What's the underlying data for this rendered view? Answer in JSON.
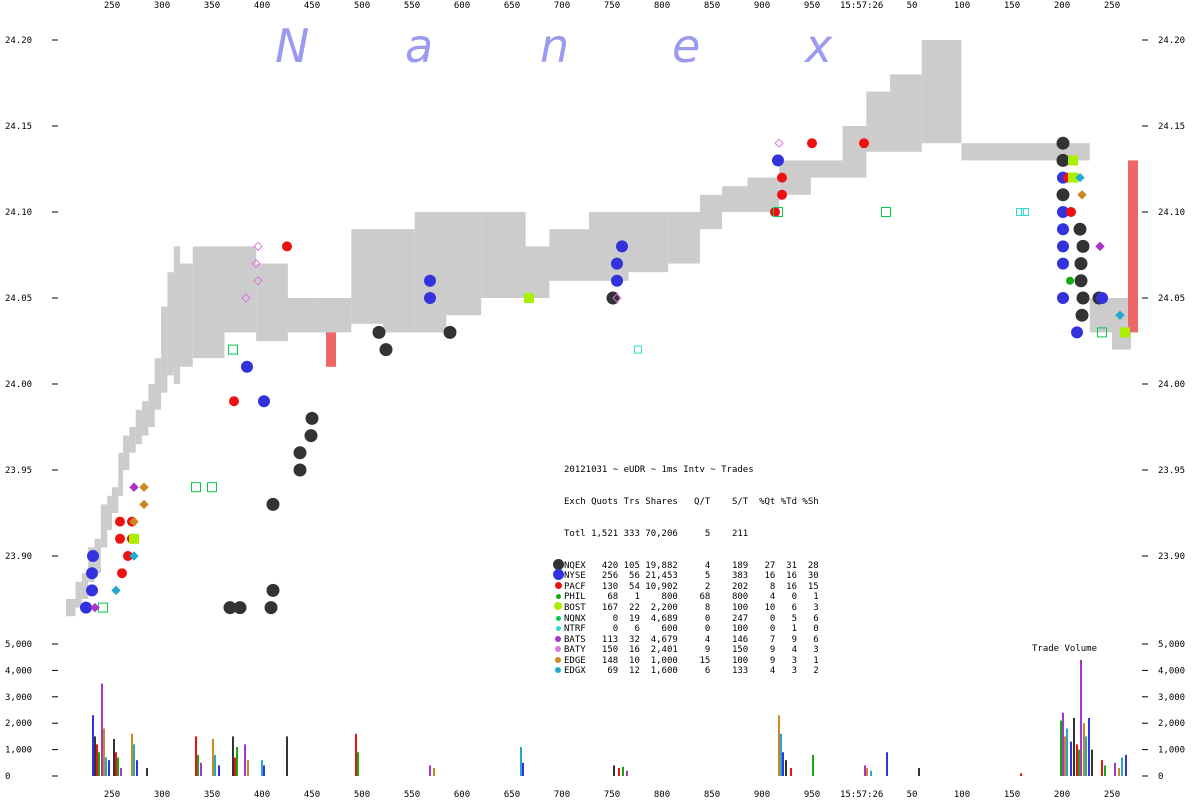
{
  "watermark": "Nanex",
  "top_time_label": "15:57:26",
  "bottom_time_label": "15:57:26",
  "chart_data": [
    {
      "type": "scatter",
      "title": "",
      "x_ticks_top": [
        "250",
        "300",
        "350",
        "400",
        "450",
        "500",
        "550",
        "600",
        "650",
        "700",
        "750",
        "800",
        "850",
        "900",
        "950",
        "50",
        "100",
        "150",
        "200",
        "250"
      ],
      "x_ticks_bottom": [
        "250",
        "300",
        "350",
        "400",
        "450",
        "500",
        "550",
        "600",
        "650",
        "700",
        "750",
        "800",
        "850",
        "900",
        "950",
        "50",
        "100",
        "150",
        "200",
        "250"
      ],
      "y_ticks": [
        "24.20",
        "24.15",
        "24.10",
        "24.05",
        "24.00",
        "23.95",
        "23.90"
      ],
      "ylim": [
        23.86,
        24.2
      ],
      "nbbo_band": [
        [
          0,
          23.865,
          23.875
        ],
        [
          6,
          23.87,
          23.885
        ],
        [
          10,
          23.875,
          23.89
        ],
        [
          14,
          23.885,
          23.905
        ],
        [
          18,
          23.89,
          23.91
        ],
        [
          22,
          23.905,
          23.93
        ],
        [
          26,
          23.915,
          23.935
        ],
        [
          29,
          23.925,
          23.94
        ],
        [
          33,
          23.935,
          23.96
        ],
        [
          36,
          23.95,
          23.97
        ],
        [
          40,
          23.96,
          23.975
        ],
        [
          44,
          23.965,
          23.985
        ],
        [
          48,
          23.97,
          23.99
        ],
        [
          52,
          23.975,
          24.0
        ],
        [
          56,
          23.985,
          24.015
        ],
        [
          60,
          23.995,
          24.045
        ],
        [
          64,
          24.005,
          24.065
        ],
        [
          68,
          24.0,
          24.08
        ],
        [
          72,
          24.01,
          24.07
        ],
        [
          80,
          24.015,
          24.08
        ],
        [
          100,
          24.03,
          24.08
        ],
        [
          120,
          24.025,
          24.07
        ],
        [
          140,
          24.03,
          24.05
        ],
        [
          160,
          24.03,
          24.05
        ],
        [
          180,
          24.035,
          24.09
        ],
        [
          200,
          24.03,
          24.09
        ],
        [
          220,
          24.03,
          24.1
        ],
        [
          240,
          24.04,
          24.1
        ],
        [
          262,
          24.05,
          24.1
        ],
        [
          290,
          24.05,
          24.08
        ],
        [
          305,
          24.06,
          24.09
        ],
        [
          330,
          24.06,
          24.1
        ],
        [
          355,
          24.065,
          24.1
        ],
        [
          380,
          24.07,
          24.1
        ],
        [
          400,
          24.09,
          24.11
        ],
        [
          414,
          24.1,
          24.115
        ],
        [
          430,
          24.1,
          24.12
        ],
        [
          450,
          24.11,
          24.13
        ],
        [
          470,
          24.12,
          24.13
        ],
        [
          490,
          24.12,
          24.15
        ],
        [
          505,
          24.135,
          24.17
        ],
        [
          520,
          24.135,
          24.18
        ],
        [
          540,
          24.14,
          24.2
        ],
        [
          565,
          24.13,
          24.14
        ],
        [
          600,
          24.13,
          24.14
        ],
        [
          628,
          24.13,
          24.14
        ],
        [
          646,
          24.03,
          24.05
        ],
        [
          660,
          24.02,
          24.05
        ],
        [
          672,
          24.02,
          24.05
        ]
      ],
      "red_bars": [
        [
          269,
          24.01,
          24.03
        ],
        [
          1071,
          24.03,
          24.13
        ]
      ],
      "series": [
        {
          "name": "NQEX",
          "color": "#333333",
          "points": [
            [
              230,
              23.87
            ],
            [
              240,
              23.87
            ],
            [
              273,
              23.93
            ],
            [
              273,
              23.88
            ],
            [
              271,
              23.87
            ],
            [
              300,
              23.95
            ],
            [
              300,
              23.96
            ],
            [
              311,
              23.97
            ],
            [
              312,
              23.98
            ],
            [
              379,
              24.03
            ],
            [
              386,
              24.02
            ],
            [
              450,
              24.03
            ],
            [
              613,
              24.05
            ],
            [
              1063,
              24.14
            ],
            [
              1063,
              24.13
            ],
            [
              1063,
              24.11
            ],
            [
              1080,
              24.09
            ],
            [
              1083,
              24.08
            ],
            [
              1081,
              24.07
            ],
            [
              1081,
              24.06
            ],
            [
              1083,
              24.05
            ],
            [
              1082,
              24.04
            ],
            [
              1099,
              24.05
            ]
          ]
        },
        {
          "name": "NYSE",
          "color": "#3333dd",
          "points": [
            [
              93,
              23.9
            ],
            [
              92,
              23.89
            ],
            [
              92,
              23.88
            ],
            [
              86,
              23.87
            ],
            [
              247,
              24.01
            ],
            [
              264,
              23.99
            ],
            [
              617,
              24.06
            ],
            [
              622,
              24.08
            ],
            [
              617,
              24.07
            ],
            [
              1063,
              24.12
            ],
            [
              1063,
              24.1
            ],
            [
              1063,
              24.09
            ],
            [
              1063,
              24.08
            ],
            [
              1063,
              24.07
            ],
            [
              1063,
              24.05
            ],
            [
              1077,
              24.03
            ],
            [
              1102,
              24.05
            ],
            [
              778,
              24.13
            ],
            [
              430,
              24.05
            ],
            [
              430,
              24.06
            ]
          ]
        },
        {
          "name": "PACF",
          "color": "#ee1111",
          "points": [
            [
              120,
              23.92
            ],
            [
              132,
              23.92
            ],
            [
              132,
              23.91
            ],
            [
              120,
              23.91
            ],
            [
              122,
              23.89
            ],
            [
              128,
              23.9
            ],
            [
              234,
              23.99
            ],
            [
              287,
              24.08
            ],
            [
              782,
              24.12
            ],
            [
              782,
              24.11
            ],
            [
              775,
              24.1
            ],
            [
              812,
              24.14
            ],
            [
              864,
              24.14
            ],
            [
              1068,
              24.12
            ],
            [
              1071,
              24.1
            ]
          ]
        },
        {
          "name": "PHIL",
          "color": "#11aa11",
          "points": [
            [
              1070,
              24.06
            ]
          ]
        },
        {
          "name": "BOST",
          "color": "#aaee00",
          "points": [
            [
              134,
              23.91
            ],
            [
              529,
              24.05
            ],
            [
              1073,
              24.13
            ],
            [
              1073,
              24.12
            ],
            [
              1125,
              24.03
            ]
          ]
        },
        {
          "name": "NQNX",
          "color": "#00cc44",
          "points": [
            [
              196,
              23.94
            ],
            [
              212,
              23.94
            ],
            [
              233,
              24.02
            ],
            [
              103,
              23.87
            ],
            [
              778,
              24.1
            ],
            [
              886,
              24.1
            ],
            [
              1102,
              24.03
            ]
          ]
        },
        {
          "name": "NTRF",
          "color": "#33ddcc",
          "points": [
            [
              638,
              24.02
            ],
            [
              1020,
              24.1
            ],
            [
              1025,
              24.1
            ]
          ]
        },
        {
          "name": "BATS",
          "color": "#aa33cc",
          "points": [
            [
              134,
              23.94
            ],
            [
              95,
              23.87
            ],
            [
              1100,
              24.08
            ]
          ]
        },
        {
          "name": "BATY",
          "color": "#dd77dd",
          "points": [
            [
              258,
              24.06
            ],
            [
              256,
              24.07
            ],
            [
              258,
              24.08
            ],
            [
              246,
              24.05
            ],
            [
              617,
              24.05
            ],
            [
              779,
              24.14
            ]
          ]
        },
        {
          "name": "EDGE",
          "color": "#cc8822",
          "points": [
            [
              144,
              23.94
            ],
            [
              144,
              23.93
            ],
            [
              134,
              23.92
            ],
            [
              1082,
              24.11
            ]
          ]
        },
        {
          "name": "EDGX",
          "color": "#22aacc",
          "points": [
            [
              134,
              23.9
            ],
            [
              116,
              23.88
            ],
            [
              1080,
              24.12
            ],
            [
              1120,
              24.04
            ]
          ]
        }
      ]
    },
    {
      "type": "bar",
      "title": "Trade Volume",
      "y_ticks": [
        "5,000",
        "4,000",
        "3,000",
        "2,000",
        "1,000",
        "0"
      ],
      "ylim": [
        0,
        5000
      ],
      "volume_bars": [
        [
          92,
          2300
        ],
        [
          94,
          1500
        ],
        [
          96,
          1200
        ],
        [
          98,
          900
        ],
        [
          101,
          3500
        ],
        [
          103,
          1800
        ],
        [
          105,
          700
        ],
        [
          108,
          600
        ],
        [
          113,
          1400
        ],
        [
          115,
          900
        ],
        [
          117,
          700
        ],
        [
          120,
          300
        ],
        [
          131,
          1600
        ],
        [
          133,
          1200
        ],
        [
          136,
          600
        ],
        [
          146,
          300
        ],
        [
          195,
          1500
        ],
        [
          197,
          800
        ],
        [
          200,
          500
        ],
        [
          212,
          1400
        ],
        [
          214,
          800
        ],
        [
          218,
          400
        ],
        [
          232,
          1500
        ],
        [
          234,
          700
        ],
        [
          236,
          1100
        ],
        [
          244,
          1200
        ],
        [
          247,
          600
        ],
        [
          261,
          600
        ],
        [
          263,
          400
        ],
        [
          286,
          1500
        ],
        [
          355,
          1600
        ],
        [
          357,
          900
        ],
        [
          429,
          400
        ],
        [
          433,
          300
        ],
        [
          520,
          1100
        ],
        [
          522,
          500
        ],
        [
          613,
          400
        ],
        [
          618,
          300
        ],
        [
          622,
          350
        ],
        [
          626,
          200
        ],
        [
          778,
          2300
        ],
        [
          780,
          1600
        ],
        [
          782,
          900
        ],
        [
          785,
          600
        ],
        [
          790,
          300
        ],
        [
          812,
          800
        ],
        [
          864,
          400
        ],
        [
          866,
          300
        ],
        [
          870,
          200
        ],
        [
          886,
          900
        ],
        [
          918,
          300
        ],
        [
          1020,
          100
        ],
        [
          1060,
          2100
        ],
        [
          1062,
          2400
        ],
        [
          1064,
          1500
        ],
        [
          1066,
          1800
        ],
        [
          1070,
          1300
        ],
        [
          1073,
          2200
        ],
        [
          1076,
          1200
        ],
        [
          1078,
          1000
        ],
        [
          1080,
          4400
        ],
        [
          1083,
          2000
        ],
        [
          1085,
          1500
        ],
        [
          1088,
          2200
        ],
        [
          1091,
          1000
        ],
        [
          1101,
          600
        ],
        [
          1104,
          400
        ],
        [
          1114,
          500
        ],
        [
          1118,
          300
        ],
        [
          1121,
          700
        ],
        [
          1125,
          800
        ]
      ]
    }
  ],
  "stats_panel": {
    "title": "20121031 ~ eUDR ~ 1ms Intv ~ Trades",
    "header": "Exch Quots Trs Shares   Q/T    S/T  %Qt %Td %Sh",
    "total_row": "Totl 1,521 333 70,206     5    211",
    "rows": [
      {
        "text": "NQEX   420 105 19,882     4    189   27  31  28",
        "color": "#333333",
        "size": 11
      },
      {
        "text": "NYSE   256  56 21,453     5    383   16  16  30",
        "color": "#3333dd",
        "size": 11
      },
      {
        "text": "PACF   130  54 10,902     2    202    8  16  15",
        "color": "#ee1111",
        "size": 7
      },
      {
        "text": "PHIL    68   1    800    68    800    4   0   1",
        "color": "#11aa11",
        "size": 5
      },
      {
        "text": "BOST   167  22  2,200     8    100   10   6   3",
        "color": "#aaee00",
        "size": 8
      },
      {
        "text": "NQNX     0  19  4,689     0    247    0   5   6",
        "color": "#00cc44",
        "size": 5
      },
      {
        "text": "NTRF     0   6    600     0    100    0   1   0",
        "color": "#33ddcc",
        "size": 5
      },
      {
        "text": "BATS   113  32  4,679     4    146    7   9   6",
        "color": "#aa33cc",
        "size": 6
      },
      {
        "text": "BATY   150  16  2,401     9    150    9   4   3",
        "color": "#dd77dd",
        "size": 6
      },
      {
        "text": "EDGE   148  10  1,000    15    100    9   3   1",
        "color": "#cc8822",
        "size": 6
      },
      {
        "text": "EDGX    69  12  1,600     6    133    4   3   2",
        "color": "#22aacc",
        "size": 6
      }
    ]
  }
}
